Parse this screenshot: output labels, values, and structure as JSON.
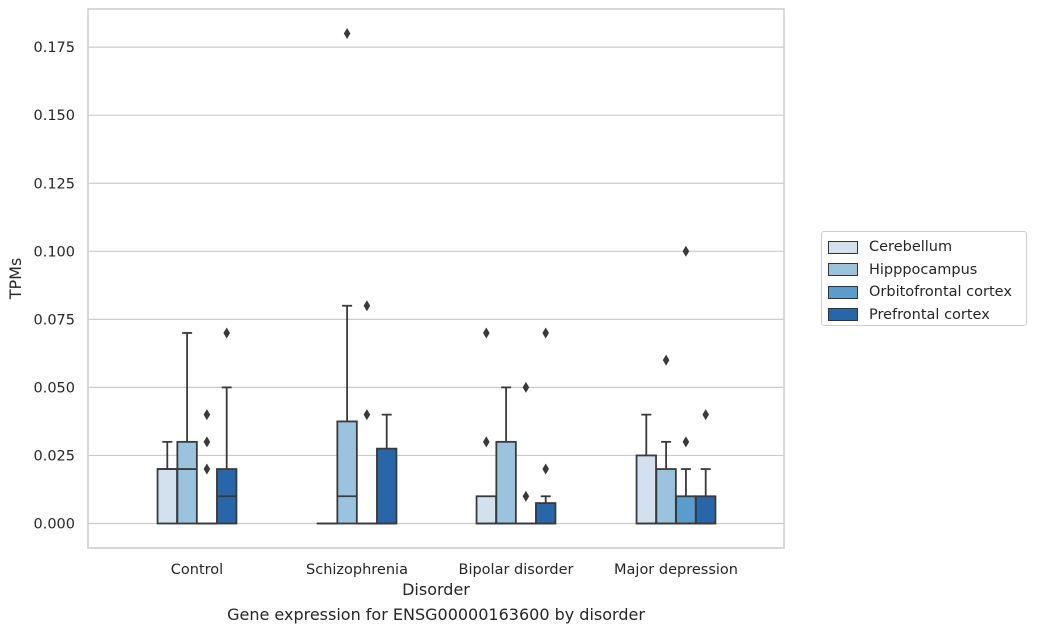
{
  "chart_data": {
    "type": "box",
    "xlabel": "Disorder",
    "ylabel": "TPMs",
    "caption": "Gene expression for ENSG00000163600 by disorder",
    "ylim": [
      -0.009,
      0.1875
    ],
    "yticks": [
      "0.000",
      "0.025",
      "0.050",
      "0.075",
      "0.100",
      "0.125",
      "0.150",
      "0.175"
    ],
    "grid": "horizontal",
    "legend_position": "right",
    "categories": [
      "Control",
      "Schizophrenia",
      "Bipolar disorder",
      "Major depression"
    ],
    "series": [
      {
        "name": "Cerebellum",
        "color": "#d3e1ef",
        "boxes": [
          {
            "q1": 0.0,
            "median": 0.02,
            "q3": 0.02,
            "whisker_low": 0.0,
            "whisker_high": 0.03,
            "outliers": []
          },
          {
            "q1": 0.0,
            "median": 0.0,
            "q3": 0.0,
            "whisker_low": 0.0,
            "whisker_high": 0.0,
            "outliers": []
          },
          {
            "q1": 0.0,
            "median": 0.0,
            "q3": 0.01,
            "whisker_low": 0.0,
            "whisker_high": 0.01,
            "outliers": [
              0.03,
              0.07
            ]
          },
          {
            "q1": 0.0,
            "median": 0.0,
            "q3": 0.025,
            "whisker_low": 0.0,
            "whisker_high": 0.04,
            "outliers": []
          }
        ]
      },
      {
        "name": "Hipppocampus",
        "color": "#9ac3de",
        "boxes": [
          {
            "q1": 0.0,
            "median": 0.02,
            "q3": 0.03,
            "whisker_low": 0.0,
            "whisker_high": 0.07,
            "outliers": []
          },
          {
            "q1": 0.0,
            "median": 0.01,
            "q3": 0.0375,
            "whisker_low": 0.0,
            "whisker_high": 0.08,
            "outliers": [
              0.18
            ]
          },
          {
            "q1": 0.0,
            "median": 0.0,
            "q3": 0.03,
            "whisker_low": 0.0,
            "whisker_high": 0.05,
            "outliers": []
          },
          {
            "q1": 0.0,
            "median": 0.0,
            "q3": 0.02,
            "whisker_low": 0.0,
            "whisker_high": 0.03,
            "outliers": [
              0.06
            ]
          }
        ]
      },
      {
        "name": "Orbitofrontal cortex",
        "color": "#5a9ccb",
        "boxes": [
          {
            "q1": 0.0,
            "median": 0.0,
            "q3": 0.0,
            "whisker_low": 0.0,
            "whisker_high": 0.0,
            "outliers": [
              0.02,
              0.03,
              0.04
            ]
          },
          {
            "q1": 0.0,
            "median": 0.0,
            "q3": 0.0,
            "whisker_low": 0.0,
            "whisker_high": 0.0,
            "outliers": [
              0.04,
              0.08
            ]
          },
          {
            "q1": 0.0,
            "median": 0.0,
            "q3": 0.0,
            "whisker_low": 0.0,
            "whisker_high": 0.0,
            "outliers": [
              0.01,
              0.05
            ]
          },
          {
            "q1": 0.0,
            "median": 0.0,
            "q3": 0.01,
            "whisker_low": 0.0,
            "whisker_high": 0.02,
            "outliers": [
              0.03,
              0.1
            ]
          }
        ]
      },
      {
        "name": "Prefrontal cortex",
        "color": "#2766a9",
        "boxes": [
          {
            "q1": 0.0,
            "median": 0.01,
            "q3": 0.02,
            "whisker_low": 0.0,
            "whisker_high": 0.05,
            "outliers": [
              0.07
            ]
          },
          {
            "q1": 0.0,
            "median": 0.0,
            "q3": 0.0275,
            "whisker_low": 0.0,
            "whisker_high": 0.04,
            "outliers": []
          },
          {
            "q1": 0.0,
            "median": 0.0,
            "q3": 0.0075,
            "whisker_low": 0.0,
            "whisker_high": 0.01,
            "outliers": [
              0.02,
              0.07
            ]
          },
          {
            "q1": 0.0,
            "median": 0.0,
            "q3": 0.01,
            "whisker_low": 0.0,
            "whisker_high": 0.02,
            "outliers": [
              0.04
            ]
          }
        ]
      }
    ]
  }
}
